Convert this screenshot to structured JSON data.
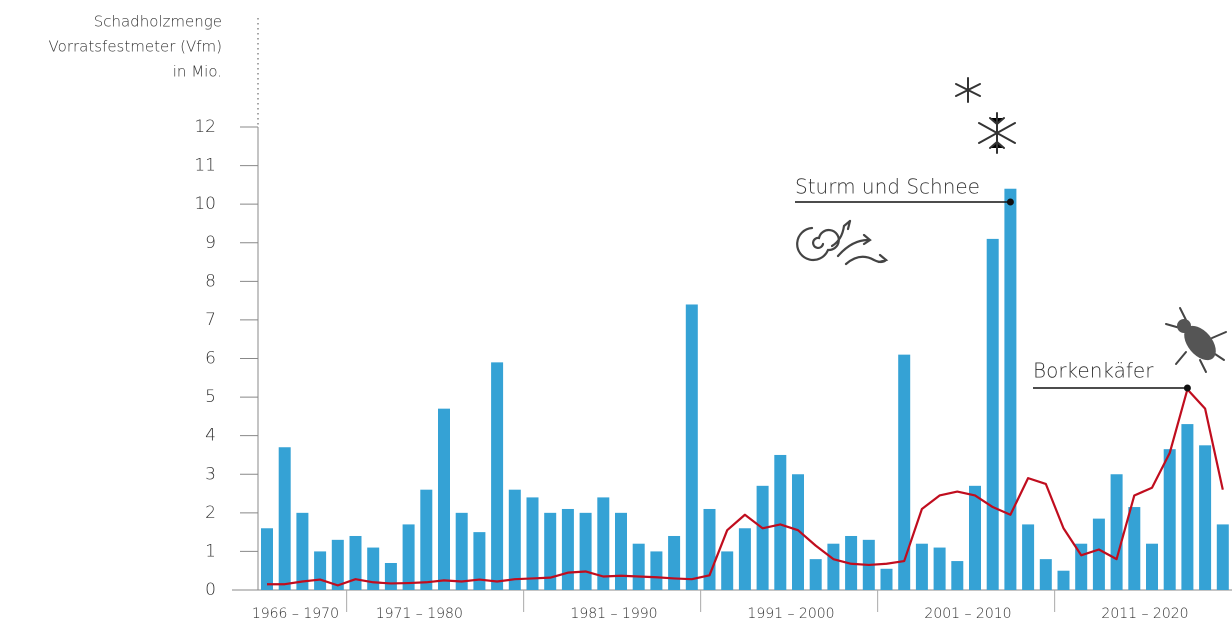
{
  "chart_data": {
    "type": "bar",
    "y_label": [
      "Schadholzmenge",
      "Vorratsfestmeter (Vfm)",
      "in Mio."
    ],
    "categories": [
      null,
      null,
      "1966 – 1970",
      null,
      null,
      null,
      null,
      null,
      null,
      "1971 – 1980",
      null,
      null,
      null,
      null,
      null,
      null,
      null,
      null,
      null,
      null,
      "1981 – 1990",
      null,
      null,
      null,
      null,
      null,
      null,
      null,
      null,
      null,
      "1991 – 2000",
      null,
      null,
      null,
      null,
      null,
      null,
      null,
      null,
      null,
      "2001 – 2010",
      null,
      null,
      null,
      null,
      null,
      null,
      null,
      null,
      null,
      "2011 – 2020",
      null,
      null,
      null,
      null
    ],
    "series": [
      {
        "color": "#35a2d5",
        "values": [
          1.6,
          3.7,
          2.0,
          1.0,
          1.3,
          1.4,
          1.1,
          0.7,
          1.7,
          2.6,
          4.7,
          2.0,
          1.5,
          5.9,
          2.6,
          2.4,
          2.0,
          2.1,
          2.0,
          2.4,
          2.0,
          1.2,
          1.0,
          1.4,
          7.4,
          2.1,
          1.0,
          1.6,
          2.7,
          3.5,
          3.0,
          0.8,
          1.2,
          1.4,
          1.3,
          0.55,
          6.1,
          1.2,
          1.1,
          0.75,
          2.7,
          9.1,
          10.4,
          1.7,
          0.8,
          0.5,
          1.2,
          1.85,
          3.0,
          2.15,
          1.2,
          3.65,
          4.3,
          3.75,
          1.7
        ]
      },
      {
        "type": "line",
        "color": "#c00d1e",
        "values": [
          0.15,
          0.15,
          0.22,
          0.27,
          0.12,
          0.28,
          0.2,
          0.17,
          0.18,
          0.2,
          0.25,
          0.22,
          0.27,
          0.22,
          0.28,
          0.3,
          0.32,
          0.45,
          0.48,
          0.35,
          0.37,
          0.35,
          0.33,
          0.3,
          0.28,
          0.38,
          1.55,
          1.95,
          1.6,
          1.7,
          1.55,
          1.15,
          0.8,
          0.68,
          0.65,
          0.68,
          0.75,
          2.1,
          2.45,
          2.55,
          2.45,
          2.15,
          1.95,
          2.9,
          2.75,
          1.6,
          0.9,
          1.05,
          0.8,
          2.45,
          2.65,
          3.55,
          5.2,
          4.7,
          2.6
        ]
      }
    ],
    "annotations": [
      {
        "text": "Sturm und Schnee"
      },
      {
        "text": "Borkenkäfer"
      }
    ],
    "ylim": [
      0,
      12
    ],
    "yticks": [
      0,
      1,
      2,
      3,
      4,
      5,
      6,
      7,
      8,
      9,
      10,
      11,
      12
    ]
  }
}
